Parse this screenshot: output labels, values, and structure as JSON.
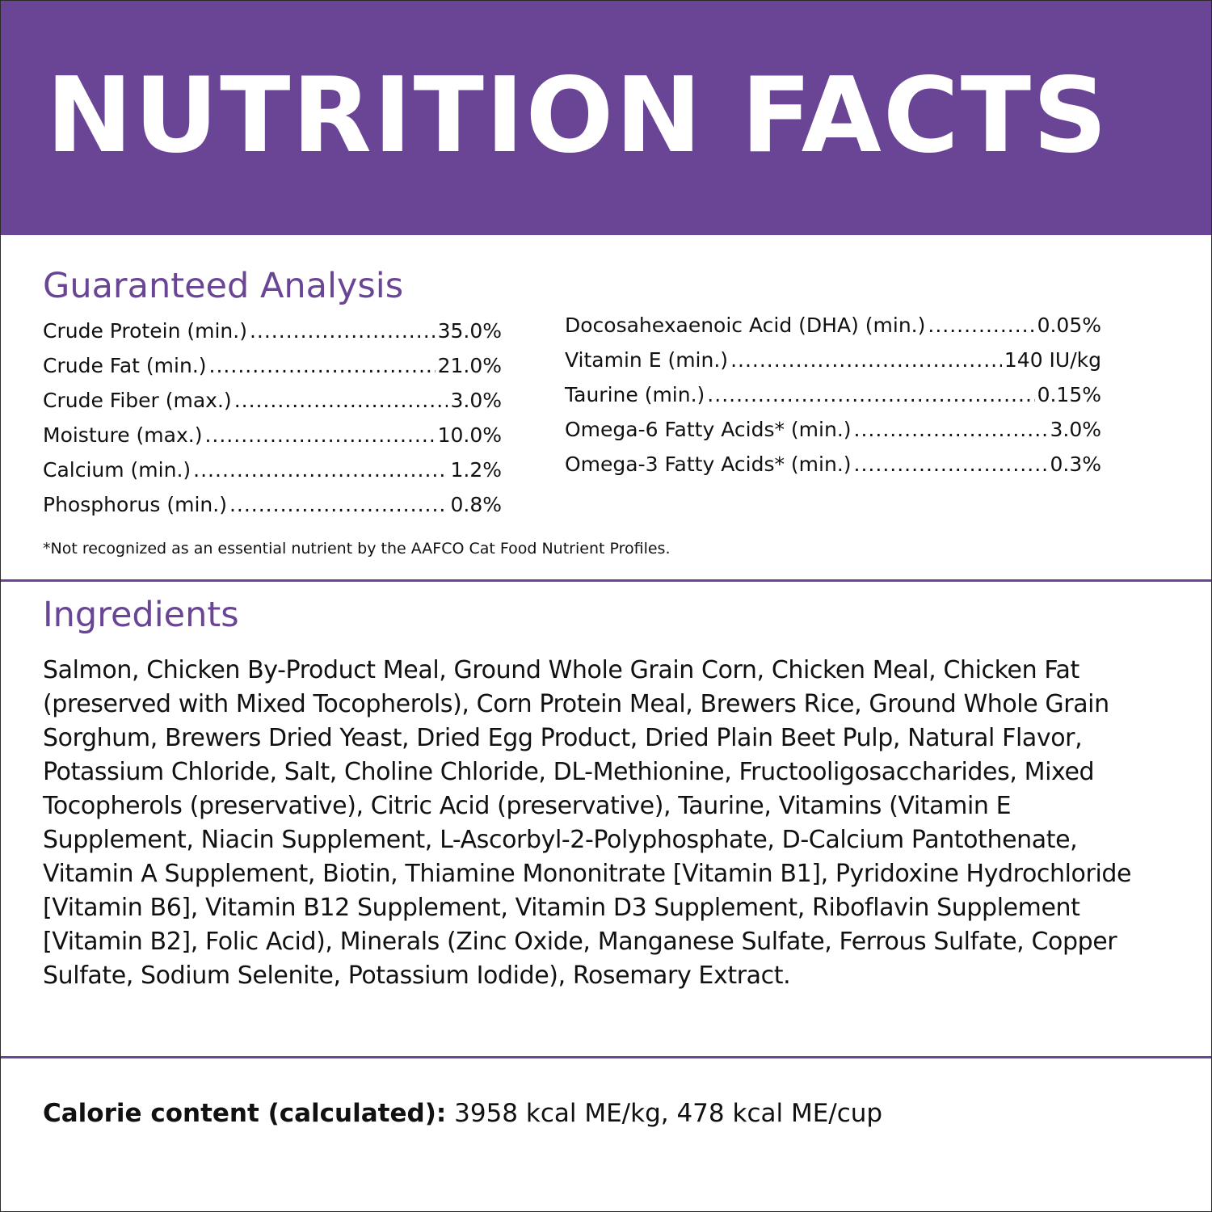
{
  "header": {
    "title": "NUTRITION FACTS",
    "background_color": "#6a4596"
  },
  "guaranteed_analysis": {
    "title": "Guaranteed Analysis",
    "left_column": [
      {
        "name": "Crude Protein (min.)",
        "value": "35.0%"
      },
      {
        "name": "Crude Fat (min.)",
        "value": "21.0%"
      },
      {
        "name": "Crude Fiber (max.)",
        "value": "3.0%"
      },
      {
        "name": "Moisture (max.)",
        "value": "10.0%"
      },
      {
        "name": "Calcium (min.)",
        "value": "1.2%"
      },
      {
        "name": "Phosphorus (min.)",
        "value": "0.8%"
      }
    ],
    "right_column": [
      {
        "name": "Docosahexaenoic Acid (DHA) (min.)",
        "value": "0.05%"
      },
      {
        "name": "Vitamin E (min.)",
        "value": "140 IU/kg"
      },
      {
        "name": "Taurine (min.)",
        "value": "0.15%"
      },
      {
        "name": "Omega-6 Fatty Acids* (min.)",
        "value": "3.0%"
      },
      {
        "name": "Omega-3 Fatty Acids* (min.)",
        "value": "0.3%"
      }
    ],
    "footnote": "*Not recognized as an essential nutrient by the AAFCO Cat Food Nutrient Profiles."
  },
  "ingredients": {
    "title": "Ingredients",
    "text": "Salmon, Chicken By-Product Meal, Ground Whole Grain Corn, Chicken Meal, Chicken Fat (preserved with Mixed Tocopherols), Corn Protein Meal, Brewers Rice, Ground Whole Grain Sorghum, Brewers Dried Yeast, Dried Egg Product, Dried Plain Beet Pulp, Natural Flavor, Potassium Chloride, Salt, Choline Chloride, DL-Methionine, Fructooligosaccharides, Mixed Tocopherols (preservative), Citric Acid (preservative), Taurine, Vitamins (Vitamin E Supplement, Niacin Supplement, L-Ascorbyl-2-Polyphosphate, D-Calcium Pantothenate, Vitamin A Supplement, Biotin, Thiamine Mononitrate [Vitamin B1], Pyridoxine Hydrochloride [Vitamin B6], Vitamin B12 Supplement, Vitamin D3 Supplement, Riboflavin Supplement [Vitamin B2], Folic Acid), Minerals (Zinc Oxide, Manganese Sulfate, Ferrous Sulfate, Copper Sulfate, Sodium Selenite, Potassium Iodide), Rosemary Extract."
  },
  "calorie": {
    "label": "Calorie content (calculated):",
    "value": "3958 kcal ME/kg, 478 kcal ME/cup"
  }
}
